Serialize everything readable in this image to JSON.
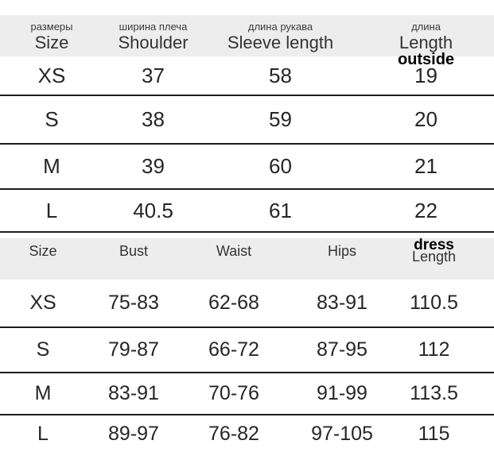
{
  "colors": {
    "background": "#ffffff",
    "header_band": "#ededed",
    "separator_line": "#1d1d1d",
    "text": "#2d2d2d",
    "overlay_text": "#000000"
  },
  "table1": {
    "columns": [
      {
        "ru": "размеры",
        "en": "Size",
        "extra": ""
      },
      {
        "ru": "ширина плеча",
        "en": "Shoulder",
        "extra": ""
      },
      {
        "ru": "длина рукава",
        "en": "Sleeve length",
        "extra": ""
      },
      {
        "ru": "длина",
        "en": "Length",
        "extra": "outside"
      }
    ],
    "rows": [
      [
        "XS",
        "37",
        "58",
        "19"
      ],
      [
        "S",
        "38",
        "59",
        "20"
      ],
      [
        "M",
        "39",
        "60",
        "21"
      ],
      [
        "L",
        "40.5",
        "61",
        "22"
      ]
    ]
  },
  "table2": {
    "columns": [
      {
        "label": "Size",
        "extra": ""
      },
      {
        "label": "Bust",
        "extra": ""
      },
      {
        "label": "Waist",
        "extra": ""
      },
      {
        "label": "Hips",
        "extra": ""
      },
      {
        "label": "Length",
        "extra": "dress"
      }
    ],
    "rows": [
      [
        "XS",
        "75-83",
        "62-68",
        "83-91",
        "110.5"
      ],
      [
        "S",
        "79-87",
        "66-72",
        "87-95",
        "112"
      ],
      [
        "M",
        "83-91",
        "70-76",
        "91-99",
        "113.5"
      ],
      [
        "L",
        "89-97",
        "76-82",
        "97-105",
        "115"
      ]
    ]
  },
  "chart_data": [
    {
      "type": "table",
      "title": "Sleeve/shoulder size chart (cm)",
      "columns": [
        "размеры / Size",
        "ширина плеча / Shoulder",
        "длина рукава / Sleeve length",
        "длина / Length outside"
      ],
      "rows": [
        [
          "XS",
          "37",
          "58",
          "19"
        ],
        [
          "S",
          "38",
          "59",
          "20"
        ],
        [
          "M",
          "39",
          "60",
          "21"
        ],
        [
          "L",
          "40.5",
          "61",
          "22"
        ]
      ]
    },
    {
      "type": "table",
      "title": "Body measurements size chart (cm)",
      "columns": [
        "Size",
        "Bust",
        "Waist",
        "Hips",
        "dress Length"
      ],
      "rows": [
        [
          "XS",
          "75-83",
          "62-68",
          "83-91",
          "110.5"
        ],
        [
          "S",
          "79-87",
          "66-72",
          "87-95",
          "112"
        ],
        [
          "M",
          "83-91",
          "70-76",
          "91-99",
          "113.5"
        ],
        [
          "L",
          "89-97",
          "76-82",
          "97-105",
          "115"
        ]
      ]
    }
  ]
}
